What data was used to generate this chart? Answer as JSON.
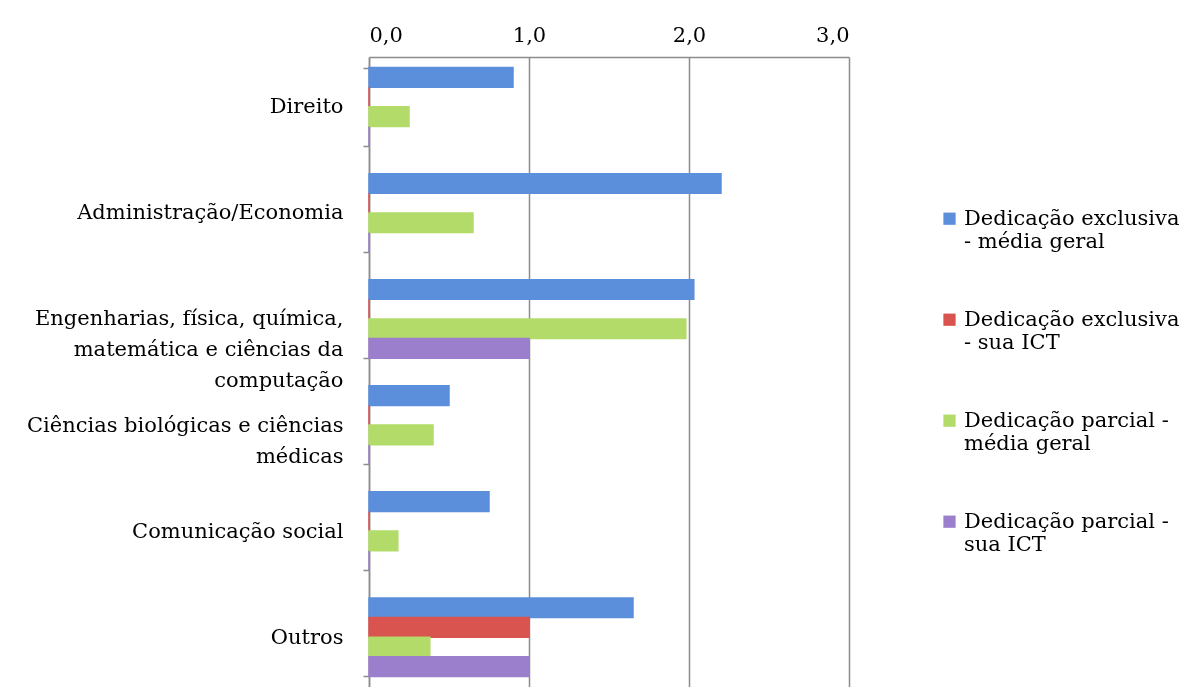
{
  "chart_data": {
    "type": "bar",
    "orientation": "horizontal",
    "categories": [
      "Direito",
      "Administração/Economia",
      "Engenharias, física, química, matemática e ciências da computação",
      "Ciências biológicas e ciências médicas",
      "Comunicação social",
      "Outros"
    ],
    "series": [
      {
        "name": "Dedicação exclusiva - média geral",
        "color": "#5b8fdc",
        "values": [
          0.9,
          2.2,
          2.03,
          0.5,
          0.75,
          1.65
        ]
      },
      {
        "name": "Dedicação exclusiva - sua ICT",
        "color": "#d9534f",
        "values": [
          0,
          0,
          0,
          0,
          0,
          1.0
        ]
      },
      {
        "name": "Dedicação parcial - média geral",
        "color": "#b3db6a",
        "values": [
          0.25,
          0.65,
          1.98,
          0.4,
          0.18,
          0.38
        ]
      },
      {
        "name": "Dedicação parcial - sua ICT",
        "color": "#9b7fcc",
        "values": [
          0,
          0,
          1.0,
          0,
          0,
          1.0
        ]
      }
    ],
    "xlim": [
      0,
      3
    ],
    "xticks": [
      {
        "value": 0,
        "label": "0,0"
      },
      {
        "value": 1,
        "label": "1,0"
      },
      {
        "value": 2,
        "label": "2,0"
      },
      {
        "value": 3,
        "label": "3,0"
      }
    ],
    "grid": "x",
    "legend": "right"
  }
}
